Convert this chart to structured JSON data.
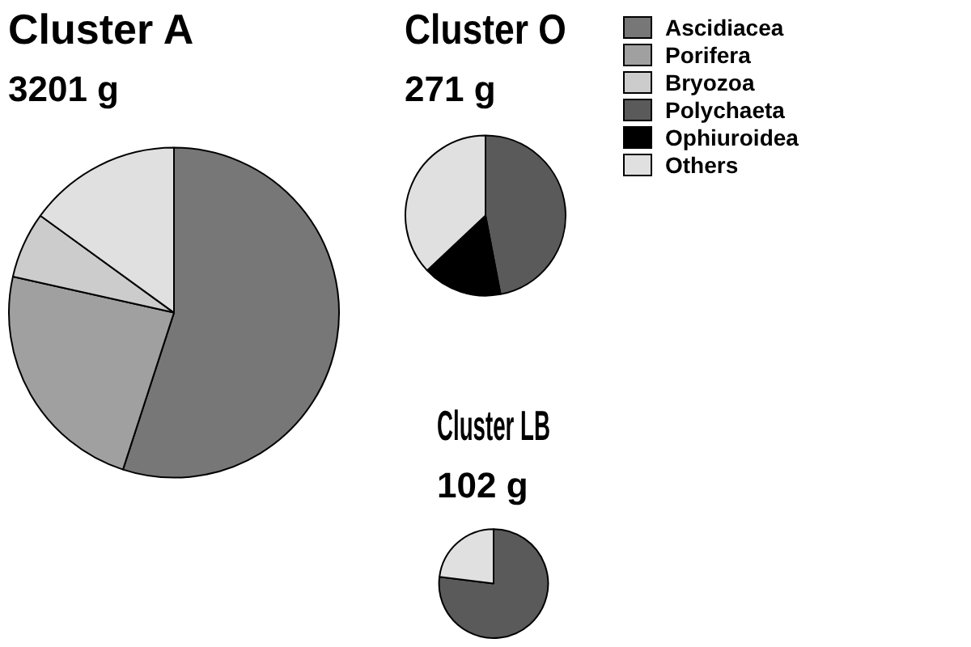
{
  "chart_data": [
    {
      "type": "pie",
      "title": "Cluster A",
      "subtitle": "3201 g",
      "categories": [
        null,
        null,
        null,
        null
      ],
      "values": [
        55,
        23.5,
        6.5,
        15
      ],
      "colors": [
        "#777777",
        "#a0a0a0",
        "#cccccc",
        "#e0e0e0"
      ],
      "legend": false
    },
    {
      "type": "pie",
      "title": "Cluster O",
      "subtitle": "271 g",
      "categories": [
        "Ascidiacea",
        "Porifera",
        "Bryozoa",
        "Polychaeta",
        "Ophiuroidea",
        "Others"
      ],
      "values": [
        0,
        0,
        0,
        47,
        16,
        37
      ],
      "colors": [
        "#777777",
        "#a0a0a0",
        "#cccccc",
        "#5a5a5a",
        "#000000",
        "#e0e0e0"
      ],
      "legend": "right"
    },
    {
      "type": "pie",
      "title": "Cluster LB",
      "subtitle": "102 g",
      "categories": [
        null,
        null
      ],
      "values": [
        77,
        23
      ],
      "colors": [
        "#5a5a5a",
        "#e0e0e0"
      ],
      "legend": false
    }
  ]
}
